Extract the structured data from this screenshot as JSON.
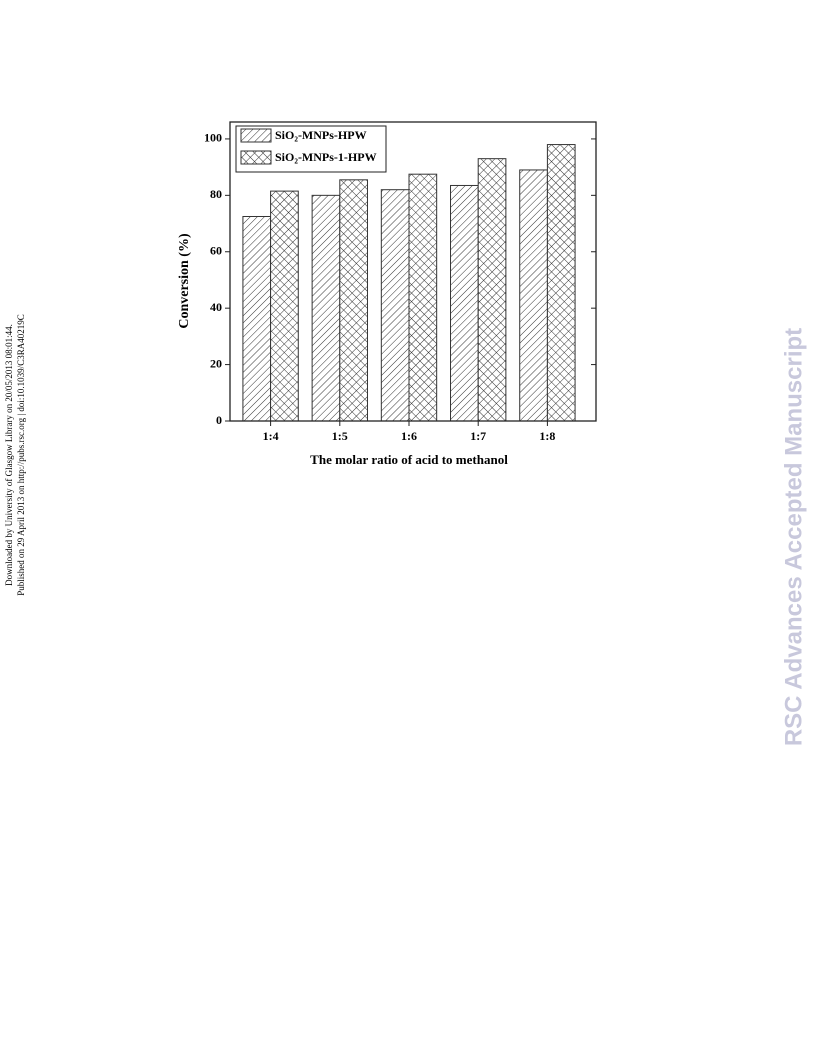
{
  "page": {
    "side_notes": [
      "Downloaded by University of Glasgow Library on 20/05/2013 08:01:44.",
      "Published on 29 April 2013 on http://pubs.rsc.org | doi:10.1039/C3RA40219C"
    ],
    "watermark": "RSC Advances Accepted Manuscript"
  },
  "chart_data": {
    "type": "bar",
    "x_label": "The molar ratio of acid to methanol",
    "y_label": "Conversion (%)",
    "categories": [
      "1:4",
      "1:5",
      "1:6",
      "1:7",
      "1:8"
    ],
    "series": [
      {
        "name": "SiO₂-MNPs-HPW",
        "color": "#333333",
        "pattern": "diagonal",
        "values": [
          72.5,
          80,
          82,
          83.5,
          89
        ]
      },
      {
        "name": "SiO₂-MNPs-1-HPW",
        "color": "#333333",
        "pattern": "crosshatch",
        "values": [
          81.5,
          85.5,
          87.5,
          93,
          98
        ]
      }
    ],
    "ylim": [
      0,
      106
    ],
    "yticks": [
      0,
      20,
      40,
      60,
      80,
      100
    ],
    "grid": false,
    "legend": "upper-left"
  }
}
